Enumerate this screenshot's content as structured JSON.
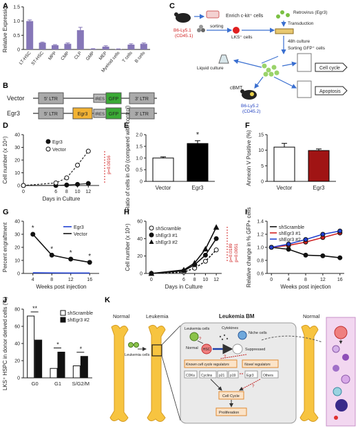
{
  "panels": {
    "A": "A",
    "B": "B",
    "C": "C",
    "D": "D",
    "E": "E",
    "F": "F",
    "G": "G",
    "H": "H",
    "I": "I",
    "J": "J",
    "K": "K"
  },
  "chart_data": [
    {
      "id": "A",
      "type": "bar",
      "ylabel": "Relative Expression",
      "ylim": [
        0,
        1.5
      ],
      "yticks": [
        "0",
        "0.5",
        "1.0",
        "1.5"
      ],
      "categories": [
        "LT-HSC",
        "ST-HSC",
        "MPP",
        "CMP",
        "CLP",
        "GMP",
        "MEP",
        "Myeloid cells",
        "T cells",
        "B cells"
      ],
      "values": [
        1.0,
        0.24,
        0.15,
        0.2,
        0.68,
        0.02,
        0.1,
        0.01,
        0.17,
        0.2
      ],
      "errors": [
        0.04,
        0.02,
        0.02,
        0.03,
        0.1,
        0.01,
        0.03,
        0.01,
        0.03,
        0.03
      ],
      "color": "#8677b8"
    },
    {
      "id": "D",
      "type": "line",
      "xlabel": "Days in Culture",
      "ylabel": "Cell number (x 10⁴)",
      "ylim": [
        0,
        40
      ],
      "yticks": [
        "0",
        "10",
        "20",
        "30",
        "40"
      ],
      "x": [
        0,
        6,
        8,
        10,
        12
      ],
      "xticks": [
        "0",
        "6",
        "8",
        "10",
        "12"
      ],
      "series": [
        {
          "name": "Egr3",
          "values": [
            0,
            0,
            0.4,
            0.9,
            1.6
          ]
        },
        {
          "name": "Vector",
          "values": [
            0,
            2,
            6,
            16,
            27
          ]
        }
      ],
      "annotation": "p=0.0016"
    },
    {
      "id": "E",
      "type": "bar",
      "ylabel": "Ratio of cells in G0 (compared with control)",
      "ylim": [
        0,
        2.0
      ],
      "yticks": [
        "0",
        "0.5",
        "1.0",
        "1.5",
        "2.0"
      ],
      "categories": [
        "Vector",
        "Egr3"
      ],
      "values": [
        1.0,
        1.62
      ],
      "errors": [
        0.05,
        0.12
      ],
      "star": "*"
    },
    {
      "id": "F",
      "type": "bar",
      "ylabel": "Annexin V Positive (%)",
      "ylim": [
        0,
        15
      ],
      "yticks": [
        "0",
        "5",
        "10",
        "15"
      ],
      "categories": [
        "Vector",
        "Egr3"
      ],
      "values": [
        11,
        9.9
      ],
      "errors": [
        1.2,
        0.5
      ]
    },
    {
      "id": "G",
      "type": "line",
      "xlabel": "Weeks post injection",
      "ylabel": "Percent engraftment",
      "ylim": [
        0,
        40
      ],
      "yticks": [
        "0",
        "10",
        "20",
        "30",
        "40"
      ],
      "x": [
        4,
        8,
        12,
        16
      ],
      "xticks": [
        "4",
        "8",
        "12",
        "16"
      ],
      "series": [
        {
          "name": "Egr3",
          "values": [
            0.5,
            0.4,
            0.3,
            0.3
          ]
        },
        {
          "name": "Vector",
          "values": [
            30,
            14,
            11,
            8.5
          ]
        }
      ],
      "stars": [
        "*",
        "*",
        "*",
        "*"
      ]
    },
    {
      "id": "H",
      "type": "line",
      "xlabel": "Days in Culture",
      "ylabel": "Cell number (x 10⁴)",
      "ylim": [
        0,
        60
      ],
      "yticks": [
        "0",
        "20",
        "40",
        "60"
      ],
      "x": [
        0,
        6,
        8,
        10,
        12
      ],
      "xticks": [
        "0",
        "6",
        "8",
        "10",
        "12"
      ],
      "series": [
        {
          "name": "shScramble",
          "values": [
            0,
            1.5,
            6,
            14,
            27
          ]
        },
        {
          "name": "shEgr3 #1",
          "values": [
            0,
            3,
            10,
            21,
            40
          ]
        },
        {
          "name": "shEgr3 #2",
          "values": [
            0,
            4,
            12,
            28,
            53
          ]
        }
      ],
      "annotations": [
        "p=0.0189",
        "p=0.0051"
      ]
    },
    {
      "id": "I",
      "type": "line",
      "xlabel": "Weeks post injection",
      "ylabel": "Relative change in % GFP+ cells",
      "ylim": [
        0.6,
        1.4
      ],
      "yticks": [
        "0.6",
        "0.8",
        "1.0",
        "1.2",
        "1.4"
      ],
      "x": [
        0,
        4,
        8,
        12,
        16
      ],
      "xticks": [
        "0",
        "4",
        "8",
        "12",
        "16"
      ],
      "series": [
        {
          "name": "shScramble",
          "values": [
            1.0,
            0.97,
            0.88,
            0.87,
            0.84
          ]
        },
        {
          "name": "shEgr3 #1",
          "values": [
            1.0,
            1.03,
            1.08,
            1.15,
            1.22
          ]
        },
        {
          "name": "shEgr3 #2",
          "values": [
            1.0,
            1.05,
            1.12,
            1.2,
            1.25
          ]
        }
      ]
    },
    {
      "id": "J",
      "type": "bar",
      "ylabel": "LKS⁺ HSPC in donor derived cells (%)",
      "ylim": [
        0,
        80
      ],
      "yticks": [
        "0",
        "20",
        "40",
        "60",
        "80"
      ],
      "categories": [
        "G0",
        "G1",
        "S/G2/M"
      ],
      "series": [
        {
          "name": "shScramble",
          "values": [
            72,
            11,
            14
          ]
        },
        {
          "name": "shEgr3 #2",
          "values": [
            44,
            30,
            25
          ]
        }
      ],
      "stars": [
        "**",
        "*",
        "*"
      ]
    }
  ],
  "panelB": {
    "rows": [
      {
        "name": "Vector",
        "boxes": [
          "5' LTR",
          "IRES",
          "GFP",
          "3' LTR"
        ]
      },
      {
        "name": "Egr3",
        "boxes": [
          "5' LTR",
          "Egr3",
          "IRES",
          "GFP",
          "3' LTR"
        ]
      }
    ]
  },
  "panelC": {
    "mouse1": "B6-Ly5.1",
    "mouse1b": "(CD45.1)",
    "enrich": "Enrich c-kit⁺ cells",
    "sorting": "sorting",
    "lks": "LKS⁺ cells",
    "retro": "Retrovirus (Egr3)",
    "transduction": "Transduction",
    "culture48": "48h culture",
    "sortgfp": "Sorting GFP⁺ cells",
    "liquid": "Liquid culture",
    "cbmt": "cBMT",
    "mouse2": "B6-Ly5.2",
    "mouse2b": "(CD45.2)",
    "cellcycle": "Cell cycle",
    "apoptosis": "Apoptosis"
  },
  "panelK": {
    "normal1": "Normal",
    "leukemia": "Leukemia",
    "leukcells": "Leukemia cells",
    "bm": "Leukemia BM",
    "normal2": "Normal",
    "lc": "Leukemia cells",
    "cytokines": "Cytokines",
    "niche": "Niche cells",
    "normal_in": "Normal",
    "hsc": "HSC",
    "suppressed": "Suppressed",
    "known": "Known cell cycle regulators",
    "novel": "Novel regulators",
    "cdks": "CDKs",
    "cyclins": "Cyclins",
    "p21": "p21",
    "p19": "p19",
    "egr3": "Egr3",
    "others": "Others",
    "cellcycle": "Cell Cycle",
    "prolif": "Proliferation",
    "q": "?"
  }
}
